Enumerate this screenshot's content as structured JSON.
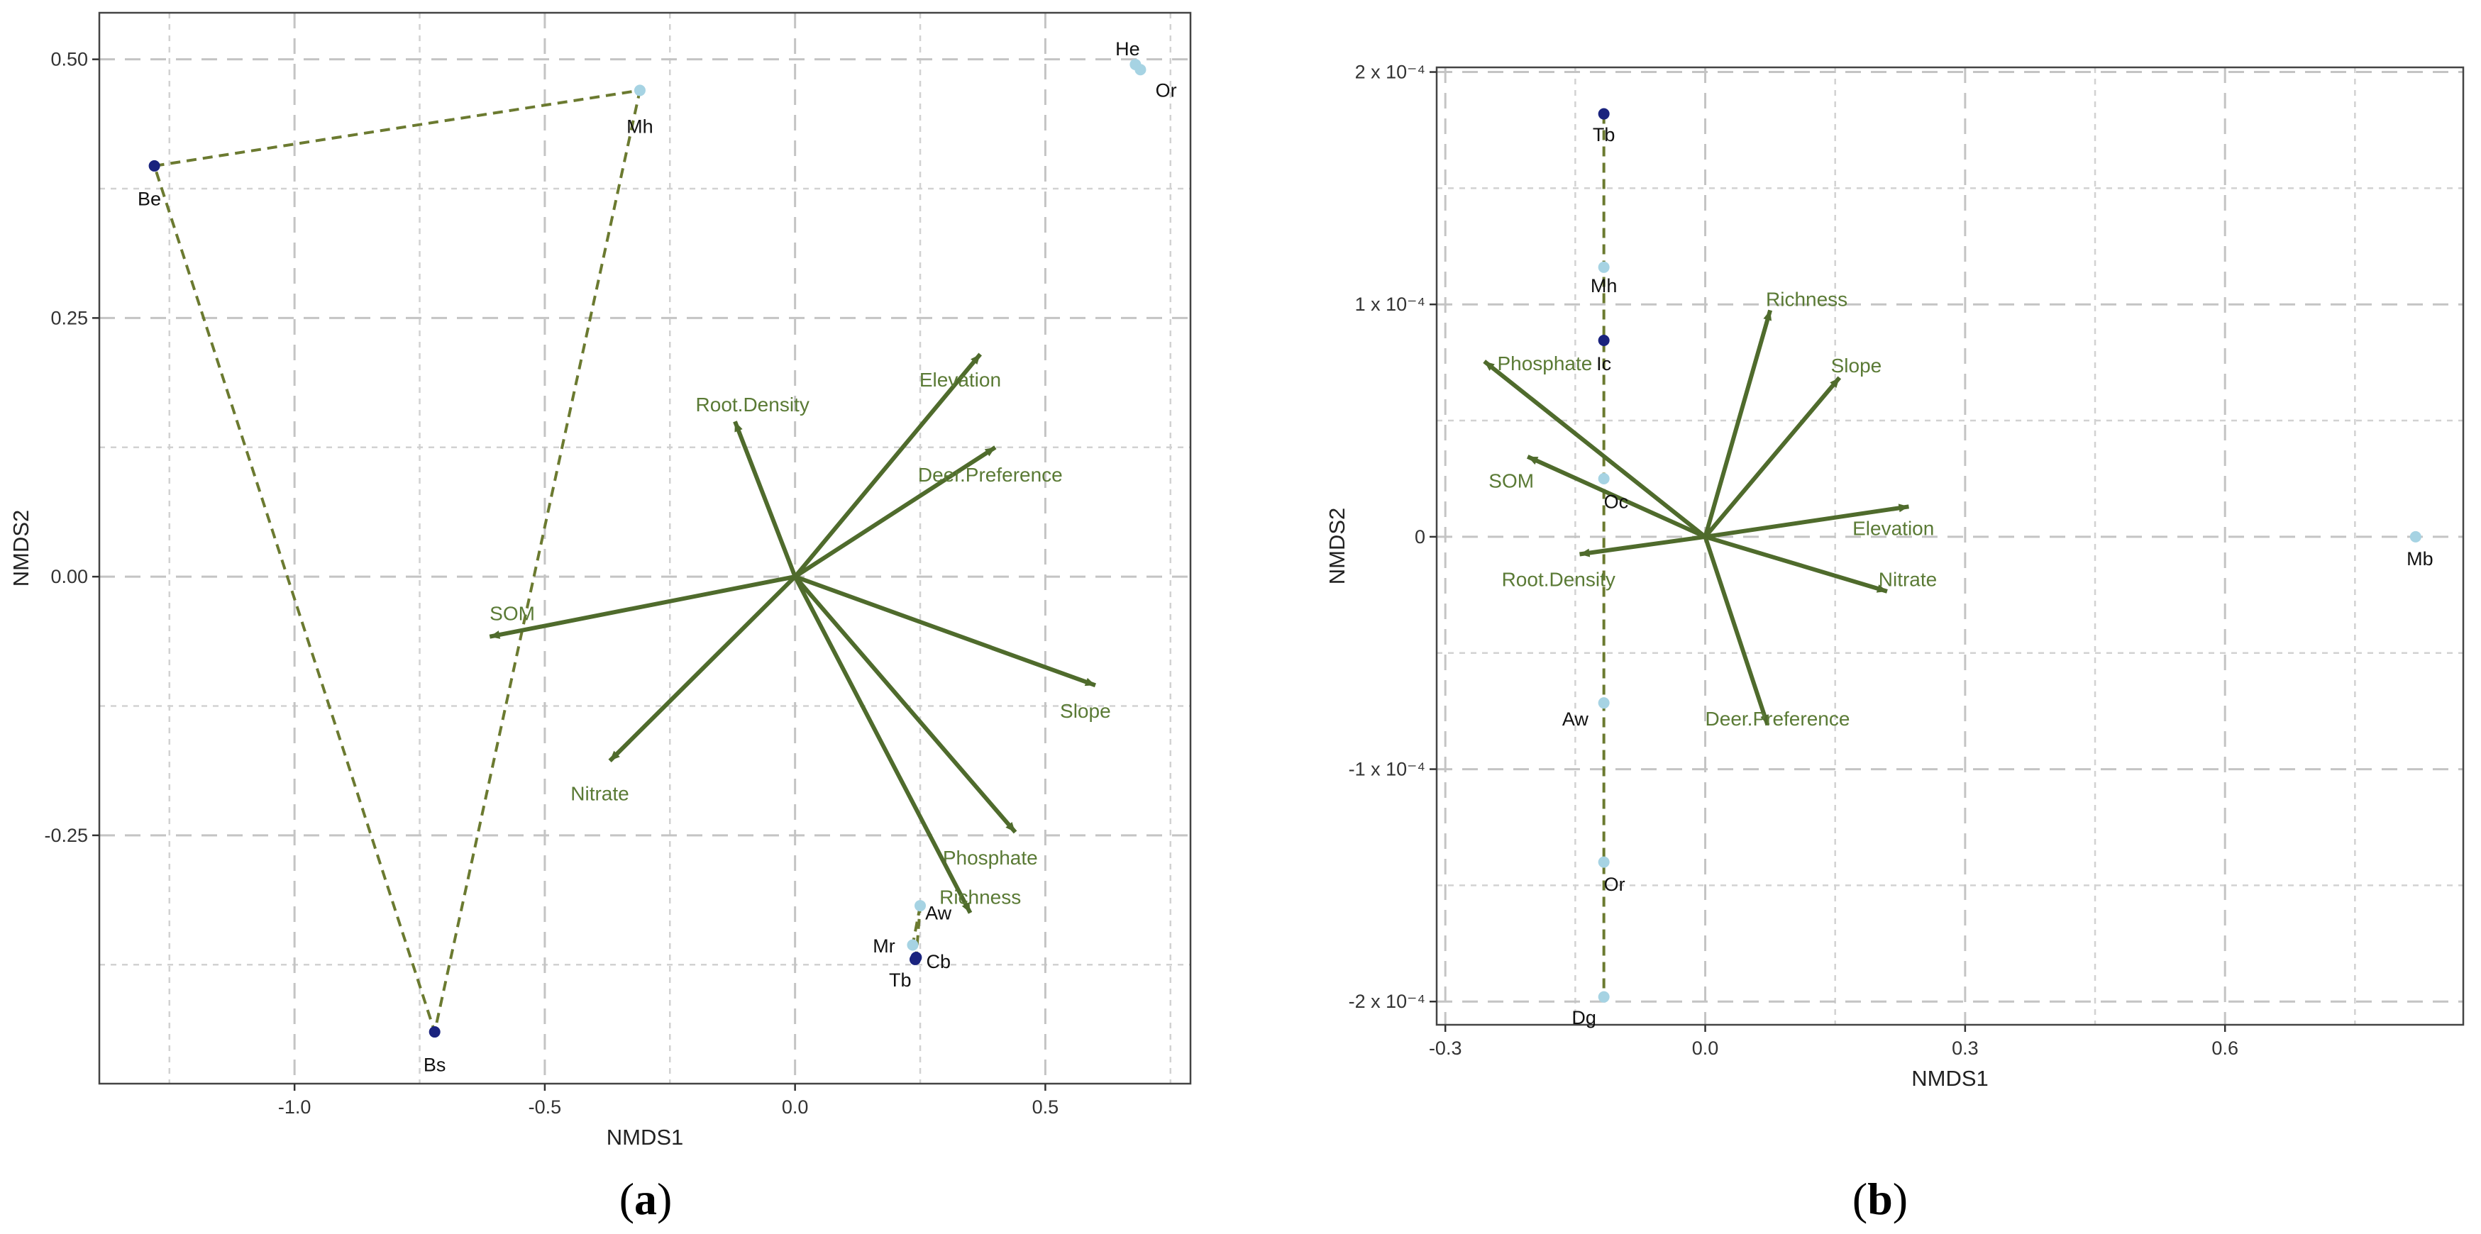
{
  "chart_data": [
    {
      "type": "scatter",
      "panel_label": "a",
      "xlabel": "NMDS1",
      "ylabel": "NMDS2",
      "xlim": [
        -1.39,
        0.79
      ],
      "ylim": [
        -0.49,
        0.545
      ],
      "xticks": [
        -1.0,
        -0.5,
        0.0,
        0.5
      ],
      "xtick_labels": [
        "-1.0",
        "-0.5",
        "0.0",
        "0.5"
      ],
      "yticks": [
        -0.25,
        0.0,
        0.25,
        0.5
      ],
      "ytick_labels": [
        "-0.25",
        "0.00",
        "0.25",
        "0.50"
      ],
      "minor_x": [
        -1.25,
        -0.75,
        -0.25,
        0.25,
        0.75
      ],
      "minor_y": [
        -0.375,
        -0.125,
        0.125,
        0.375
      ],
      "grid": true,
      "vectors": [
        {
          "name": "Root.Density",
          "x": -0.12,
          "y": 0.15,
          "lx": -0.085,
          "ly": 0.166,
          "anchor": "middle"
        },
        {
          "name": "Elevation",
          "x": 0.37,
          "y": 0.215,
          "lx": 0.33,
          "ly": 0.19,
          "anchor": "middle"
        },
        {
          "name": "Deer.Preference",
          "x": 0.4,
          "y": 0.125,
          "lx": 0.39,
          "ly": 0.098,
          "anchor": "middle"
        },
        {
          "name": "SOM",
          "x": -0.61,
          "y": -0.058,
          "lx": -0.565,
          "ly": -0.036,
          "anchor": "middle"
        },
        {
          "name": "Slope",
          "x": 0.6,
          "y": -0.105,
          "lx": 0.58,
          "ly": -0.13,
          "anchor": "middle"
        },
        {
          "name": "Nitrate",
          "x": -0.37,
          "y": -0.178,
          "lx": -0.39,
          "ly": -0.21,
          "anchor": "middle"
        },
        {
          "name": "Phosphate",
          "x": 0.44,
          "y": -0.247,
          "lx": 0.39,
          "ly": -0.272,
          "anchor": "middle"
        },
        {
          "name": "Richness",
          "x": 0.35,
          "y": -0.325,
          "lx": 0.37,
          "ly": -0.31,
          "anchor": "middle"
        }
      ],
      "points": [
        {
          "name": "He",
          "x": 0.68,
          "y": 0.495,
          "color": "#a6d3e3",
          "lx": 0.64,
          "ly": 0.51,
          "anchor": "start"
        },
        {
          "name": "Or",
          "x": 0.69,
          "y": 0.49,
          "color": "#a6d3e3",
          "lx": 0.72,
          "ly": 0.47,
          "anchor": "start"
        },
        {
          "name": "Mh",
          "x": -0.31,
          "y": 0.47,
          "color": "#a6d3e3",
          "lx": -0.31,
          "ly": 0.435,
          "anchor": "middle"
        },
        {
          "name": "Be",
          "x": -1.28,
          "y": 0.397,
          "color": "#1a237e",
          "lx": -1.29,
          "ly": 0.365,
          "anchor": "middle"
        },
        {
          "name": "Bs",
          "x": -0.72,
          "y": -0.44,
          "color": "#1a237e",
          "lx": -0.72,
          "ly": -0.472,
          "anchor": "middle"
        },
        {
          "name": "Aw",
          "x": 0.25,
          "y": -0.318,
          "color": "#a6d3e3",
          "lx": 0.26,
          "ly": -0.325,
          "anchor": "start"
        },
        {
          "name": "Mr",
          "x": 0.235,
          "y": -0.356,
          "color": "#a6d3e3",
          "lx": 0.2,
          "ly": -0.357,
          "anchor": "end"
        },
        {
          "name": "Cb",
          "x": 0.242,
          "y": -0.368,
          "color": "#1a237e",
          "lx": 0.262,
          "ly": -0.372,
          "anchor": "start"
        },
        {
          "name": "Tb",
          "x": 0.24,
          "y": -0.37,
          "color": "#1a237e",
          "lx": 0.21,
          "ly": -0.39,
          "anchor": "middle"
        }
      ],
      "hulls": [
        [
          [
            -1.28,
            0.397
          ],
          [
            -0.31,
            0.47
          ],
          [
            -0.72,
            -0.44
          ]
        ],
        [
          [
            0.25,
            -0.318
          ],
          [
            0.235,
            -0.356
          ],
          [
            0.242,
            -0.368
          ]
        ]
      ]
    },
    {
      "type": "scatter",
      "panel_label": "b",
      "xlabel": "NMDS1",
      "ylabel": "NMDS2",
      "xlim": [
        -0.31,
        0.875
      ],
      "ylim": [
        -0.00021,
        0.000202
      ],
      "xticks": [
        -0.3,
        0.0,
        0.3,
        0.6
      ],
      "xtick_labels": [
        "-0.3",
        "0.0",
        "0.3",
        "0.6"
      ],
      "yticks": [
        -0.0002,
        -0.0001,
        0,
        0.0001,
        0.0002
      ],
      "ytick_labels": [
        "-2 x 10⁻⁴",
        "-1 x 10⁻⁴",
        "0",
        "1 x 10⁻⁴",
        "2 x 10⁻⁴"
      ],
      "minor_x": [
        -0.15,
        0.15,
        0.45,
        0.75
      ],
      "minor_y": [
        -0.00015,
        -5e-05,
        5e-05,
        0.00015
      ],
      "grid": true,
      "vectors": [
        {
          "name": "Richness",
          "x": 0.075,
          "y": 9.75e-05,
          "lx": 0.07,
          "ly": 0.000102,
          "anchor": "start"
        },
        {
          "name": "Slope",
          "x": 0.155,
          "y": 6.85e-05,
          "lx": 0.145,
          "ly": 7.35e-05,
          "anchor": "start"
        },
        {
          "name": "Phosphate",
          "x": -0.255,
          "y": 7.55e-05,
          "lx": -0.24,
          "ly": 7.45e-05,
          "anchor": "start"
        },
        {
          "name": "SOM",
          "x": -0.205,
          "y": 3.45e-05,
          "lx": -0.25,
          "ly": 2.4e-05,
          "anchor": "start"
        },
        {
          "name": "Elevation",
          "x": 0.235,
          "y": 1.3e-05,
          "lx": 0.17,
          "ly": 3.5e-06,
          "anchor": "start"
        },
        {
          "name": "Root.Density",
          "x": -0.145,
          "y": -7.5e-06,
          "lx": -0.235,
          "ly": -1.85e-05,
          "anchor": "start"
        },
        {
          "name": "Nitrate",
          "x": 0.21,
          "y": -2.35e-05,
          "lx": 0.2,
          "ly": -1.85e-05,
          "anchor": "start"
        },
        {
          "name": "Deer.Preference",
          "x": 0.072,
          "y": -8.1e-05,
          "lx": 0.0,
          "ly": -7.85e-05,
          "anchor": "start"
        }
      ],
      "points": [
        {
          "name": "Tb",
          "x": -0.117,
          "y": 0.000182,
          "color": "#1a237e",
          "lx": -0.117,
          "ly": 0.000173,
          "anchor": "middle"
        },
        {
          "name": "Mh",
          "x": -0.117,
          "y": 0.000116,
          "color": "#a6d3e3",
          "lx": -0.117,
          "ly": 0.000108,
          "anchor": "middle"
        },
        {
          "name": "Ic",
          "x": -0.117,
          "y": 8.45e-05,
          "color": "#1a237e",
          "lx": -0.117,
          "ly": 7.45e-05,
          "anchor": "middle"
        },
        {
          "name": "Oc",
          "x": -0.117,
          "y": 2.5e-05,
          "color": "#a6d3e3",
          "lx": -0.117,
          "ly": 1.5e-05,
          "anchor": "start"
        },
        {
          "name": "Aw",
          "x": -0.117,
          "y": -7.15e-05,
          "color": "#a6d3e3",
          "lx": -0.15,
          "ly": -7.85e-05,
          "anchor": "middle"
        },
        {
          "name": "Or",
          "x": -0.117,
          "y": -0.00014,
          "color": "#a6d3e3",
          "lx": -0.117,
          "ly": -0.0001495,
          "anchor": "start"
        },
        {
          "name": "Dg",
          "x": -0.117,
          "y": -0.000198,
          "color": "#a6d3e3",
          "lx": -0.14,
          "ly": -0.000207,
          "anchor": "middle"
        },
        {
          "name": "Mb",
          "x": 0.82,
          "y": 0.0,
          "color": "#a6d3e3",
          "lx": 0.825,
          "ly": -9.5e-06,
          "anchor": "middle"
        }
      ],
      "hulls": [
        [
          [
            -0.117,
            0.000182
          ],
          [
            -0.117,
            -0.000198
          ]
        ]
      ]
    }
  ]
}
